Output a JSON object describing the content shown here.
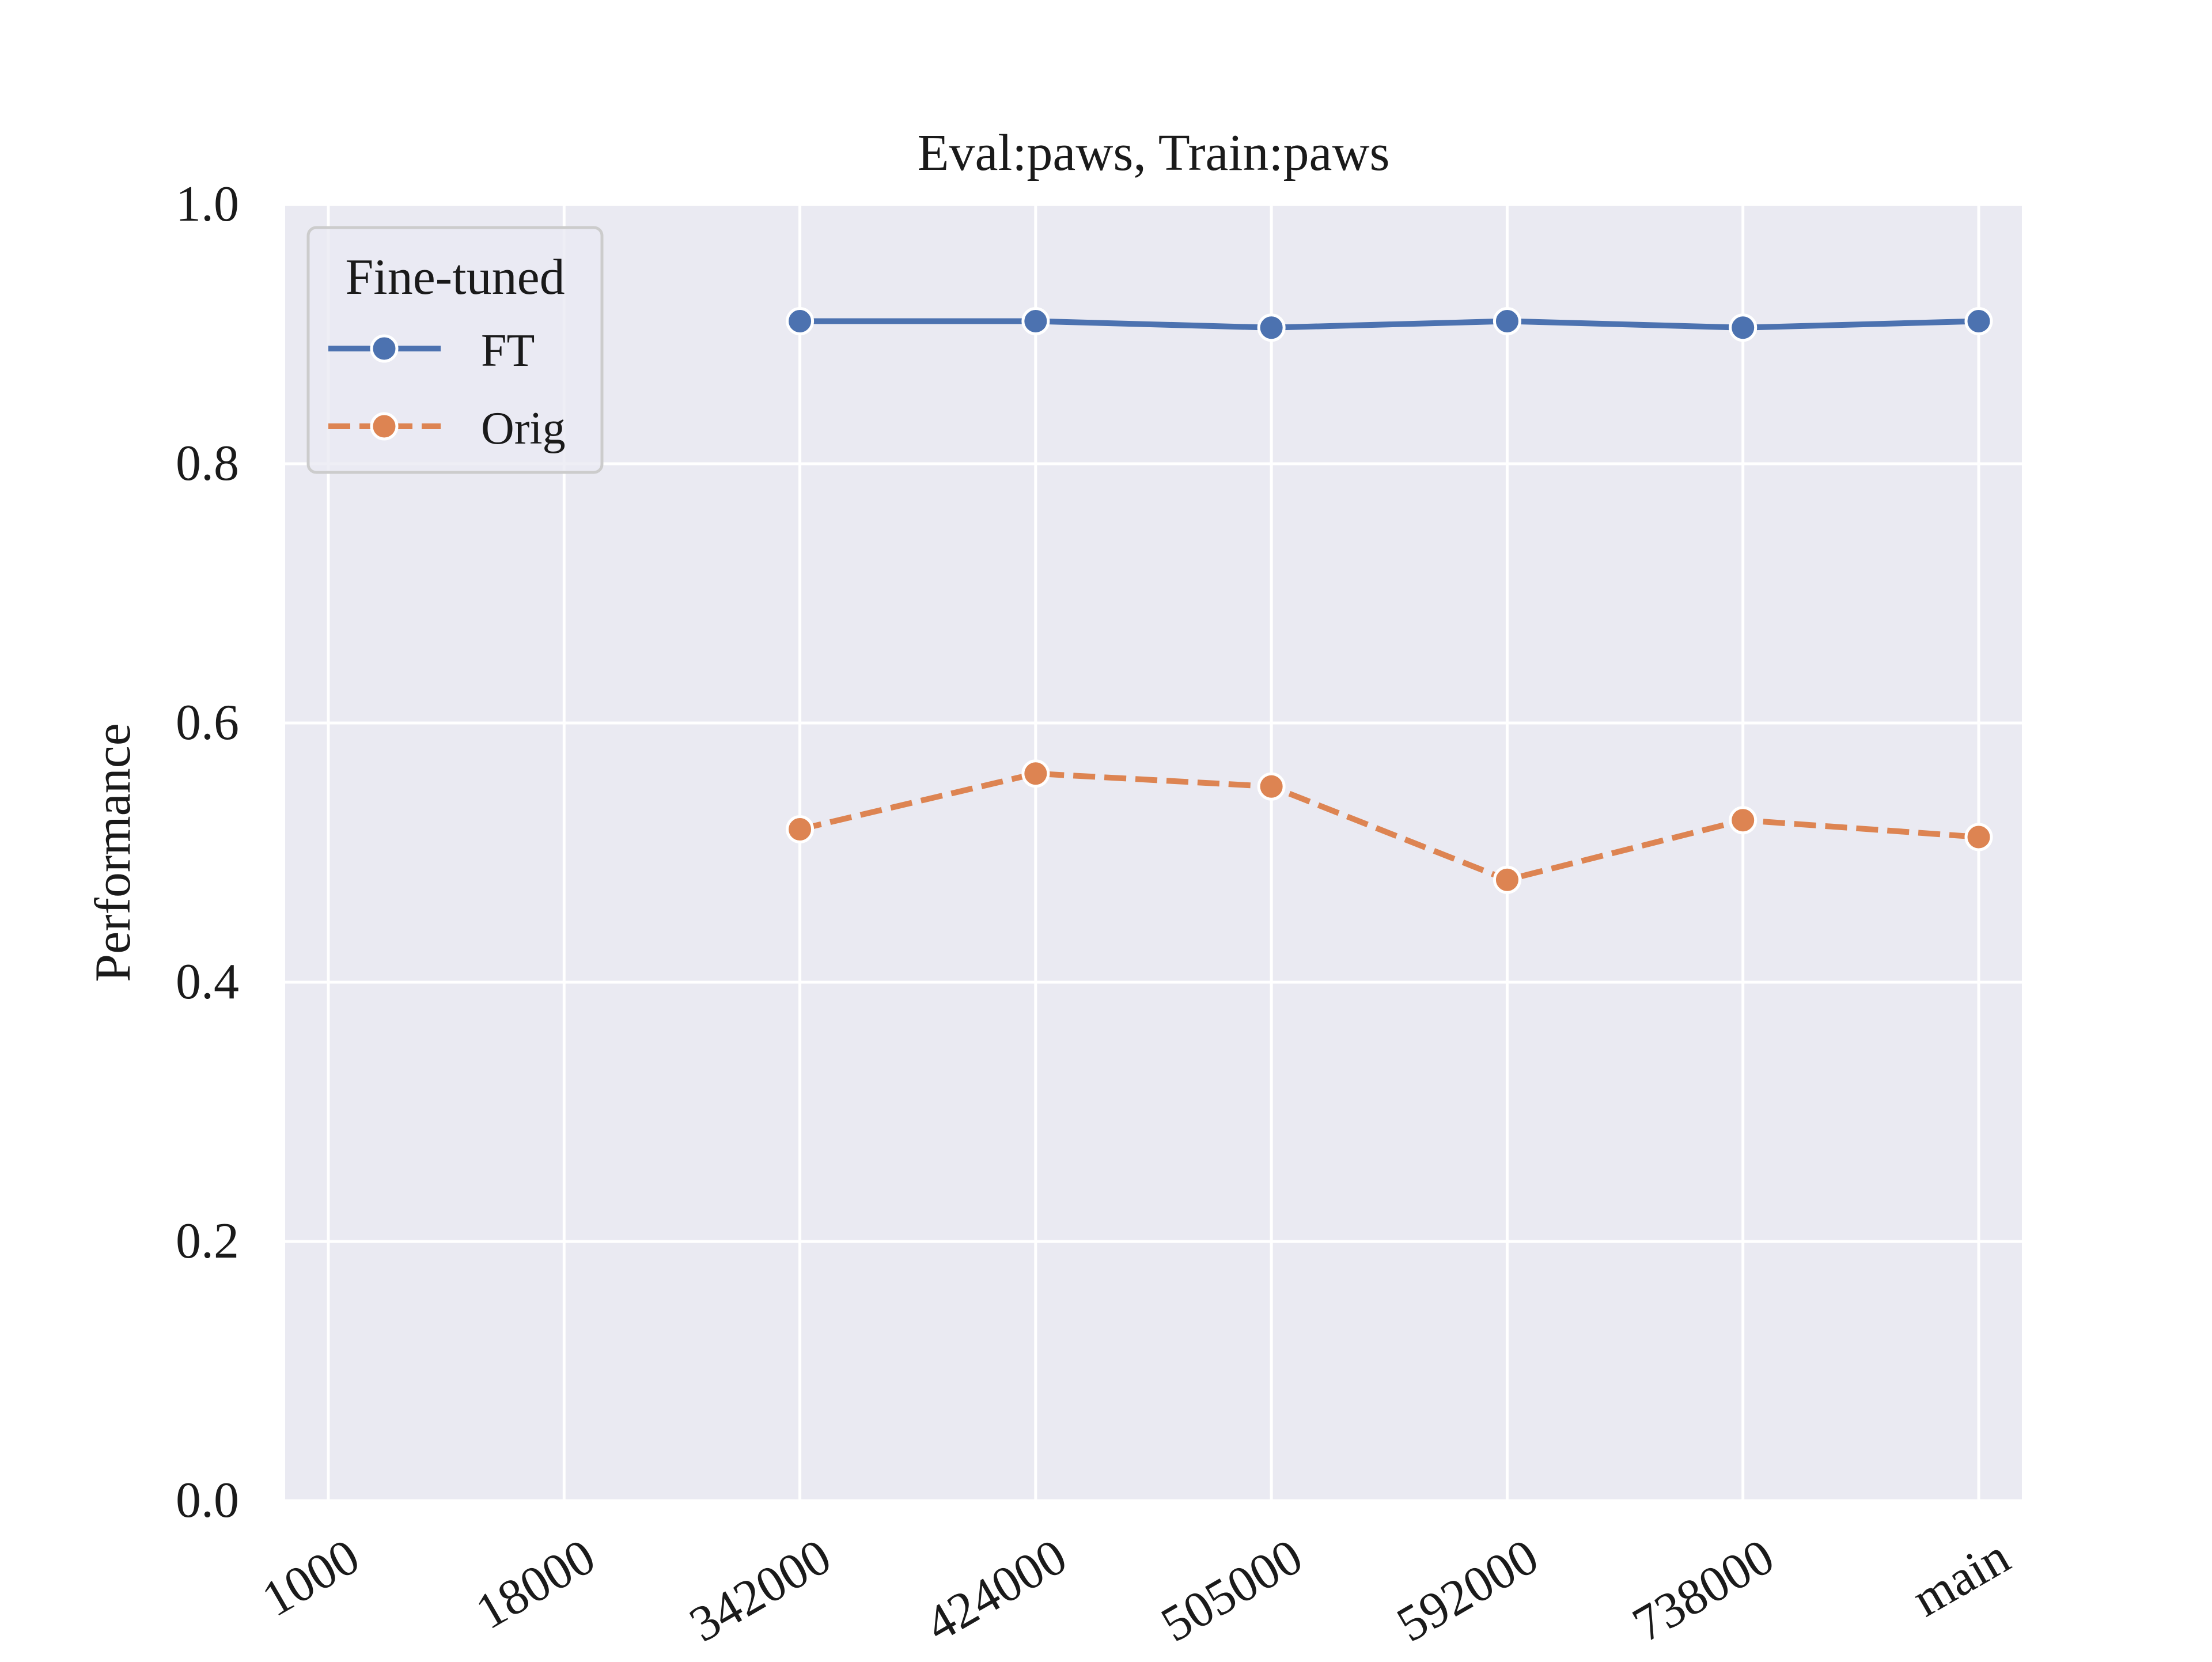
{
  "chart_data": {
    "type": "line",
    "title": "Eval:paws, Train:paws",
    "xlabel": "",
    "ylabel": "Performance",
    "categories": [
      "1000",
      "18000",
      "342000",
      "424000",
      "505000",
      "592000",
      "738000",
      "main"
    ],
    "ylim": [
      0.0,
      1.0
    ],
    "yticks": [
      "0.0",
      "0.2",
      "0.4",
      "0.6",
      "0.8",
      "1.0"
    ],
    "grid": true,
    "legend": {
      "title": "Fine-tuned",
      "placement": "top-left"
    },
    "series": [
      {
        "name": "FT",
        "color": "#4c72b0",
        "line_style": "solid",
        "values": [
          null,
          null,
          0.91,
          0.91,
          0.905,
          0.91,
          0.905,
          0.91
        ]
      },
      {
        "name": "Orig",
        "color": "#dd8452",
        "line_style": "dashed",
        "values": [
          null,
          null,
          0.518,
          0.561,
          0.551,
          0.479,
          0.525,
          0.512
        ]
      }
    ],
    "colors": {
      "plot_background": "#eaeaf2",
      "grid": "#ffffff"
    }
  }
}
